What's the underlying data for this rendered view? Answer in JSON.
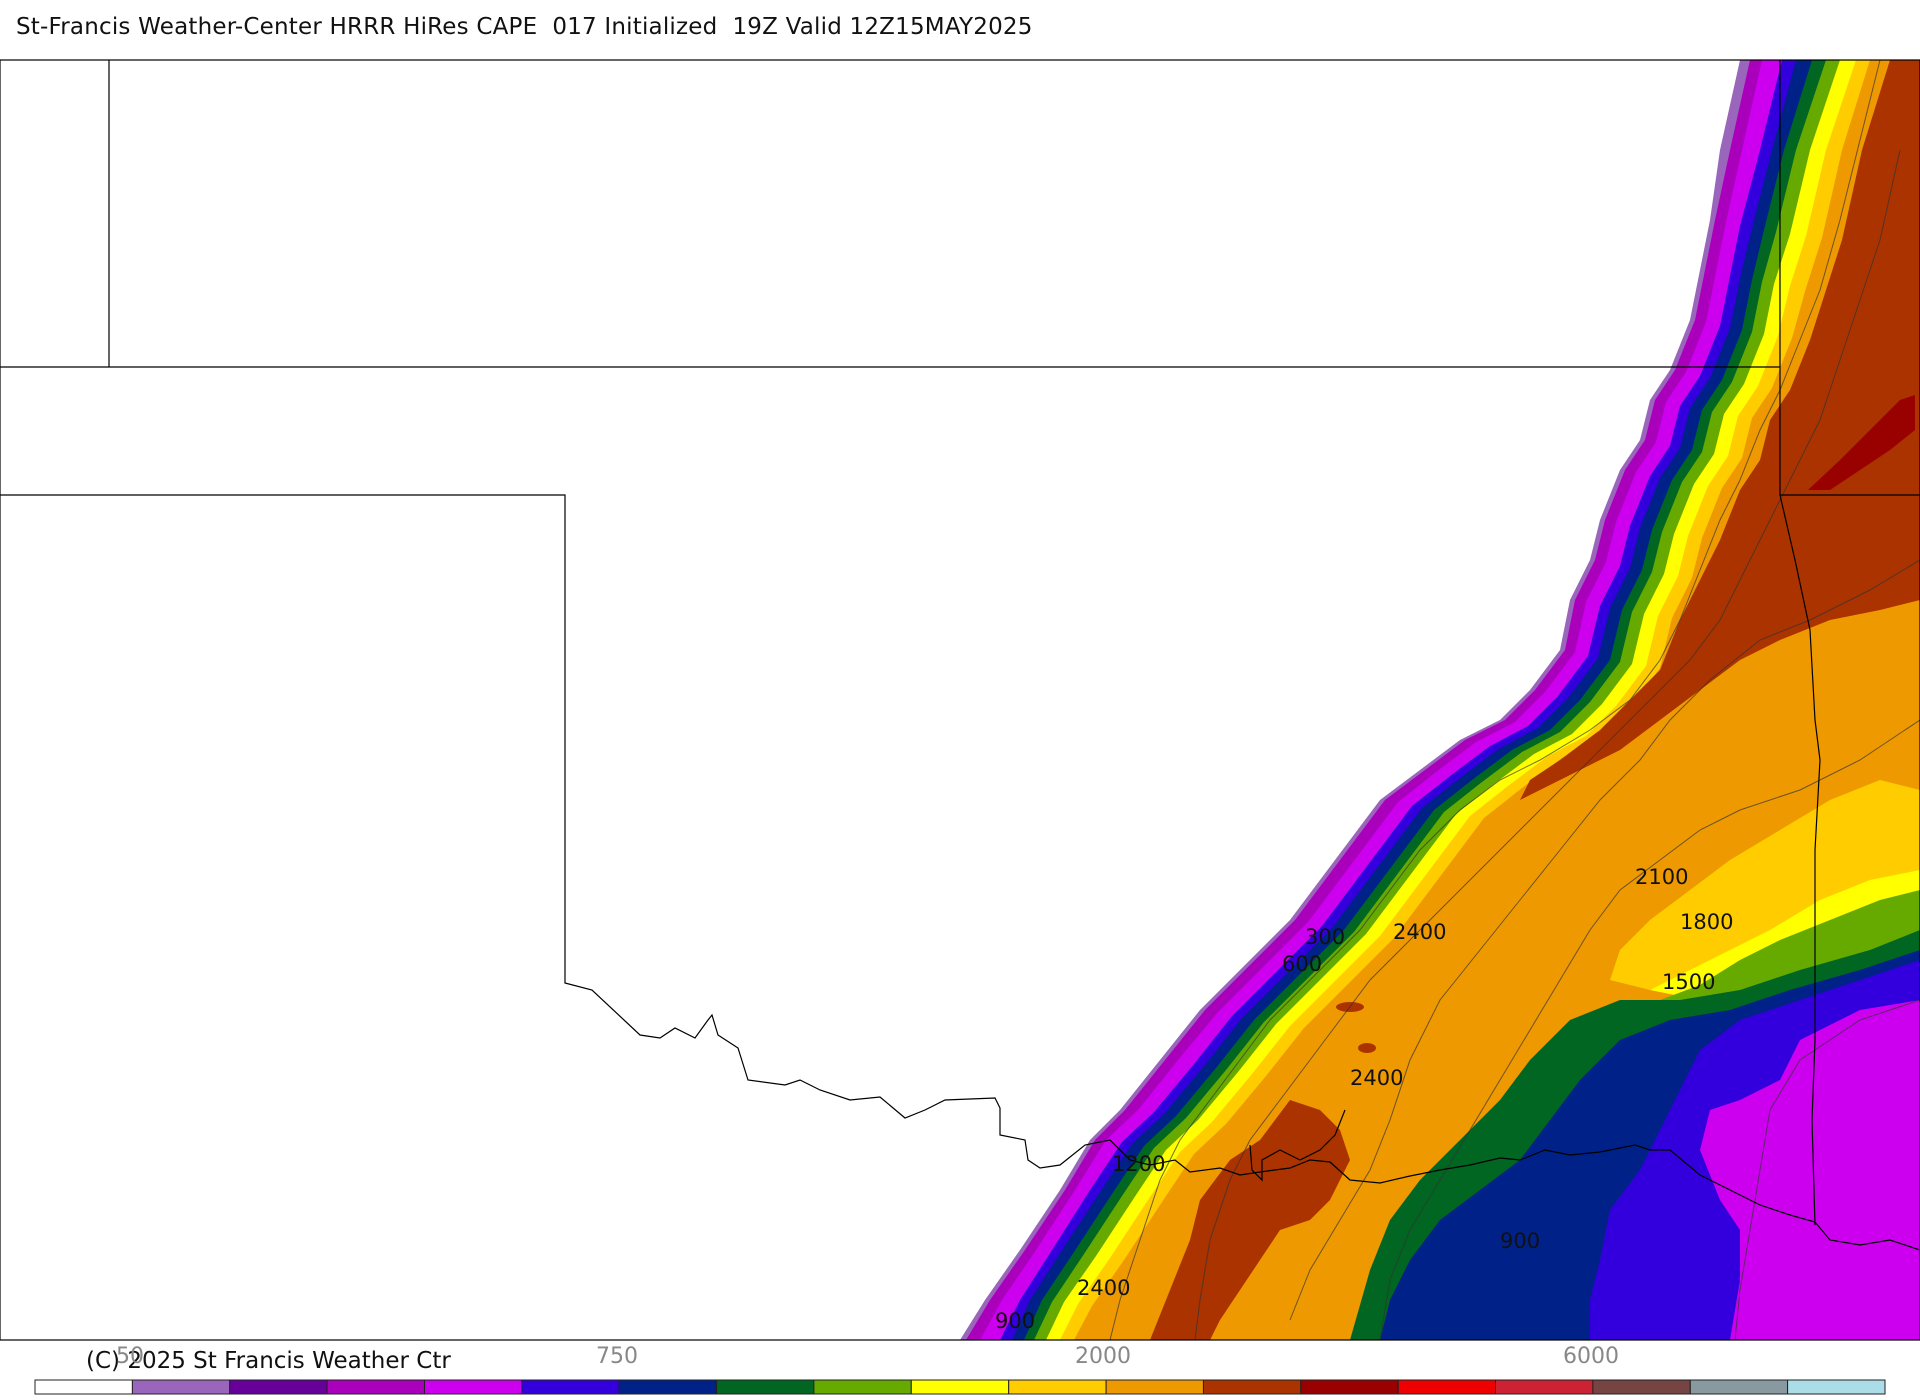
{
  "header": {
    "title": "St-Francis Weather-Center HRRR HiRes CAPE  017 Initialized  19Z Valid 12Z15MAY2025"
  },
  "footer": {
    "copyright": "(C) 2025 St Francis Weather Ctr"
  },
  "colorbar": {
    "labels": [
      "50",
      "750",
      "2000",
      "6000"
    ],
    "colors": [
      "#ffffff",
      "#9966bb",
      "#660099",
      "#aa00bb",
      "#cc00ee",
      "#3300dd",
      "#002288",
      "#006622",
      "#66aa00",
      "#ffff00",
      "#ffcc00",
      "#ee9900",
      "#aa3300",
      "#990000",
      "#ee0000",
      "#cc2233",
      "#774444",
      "#8899a0",
      "#aadde8"
    ]
  },
  "contour_labels": [
    "300",
    "600",
    "2400",
    "2100",
    "1800",
    "1500",
    "2400",
    "1200",
    "900",
    "2400",
    "900"
  ]
}
